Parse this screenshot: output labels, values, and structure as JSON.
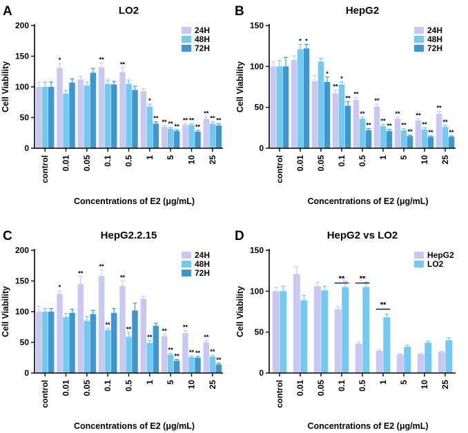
{
  "chart_data": [
    {
      "panel_label": "A",
      "type": "bar",
      "title": "LO2",
      "xlabel": "Concentrations of E2 (μg/mL)",
      "ylabel": "Cell Viability",
      "ylim": [
        0,
        200
      ],
      "yticks": [
        0,
        50,
        100,
        150,
        200
      ],
      "categories": [
        "control",
        "0.01",
        "0.05",
        "0.1",
        "0.5",
        "1",
        "5",
        "10",
        "25"
      ],
      "legend_position": "top-right",
      "series": [
        {
          "name": "24H",
          "color": "#c9c8f2",
          "values": [
            100,
            131,
            112,
            132,
            124,
            93,
            35,
            38,
            48
          ],
          "errors": [
            8,
            7,
            5,
            7,
            7,
            4,
            2,
            2,
            3
          ],
          "labels": [
            "",
            "*",
            "",
            "**",
            "**",
            "",
            "**",
            "**",
            "**"
          ]
        },
        {
          "name": "48H",
          "color": "#74c9f3",
          "values": [
            100,
            89,
            102,
            105,
            105,
            68,
            32,
            38,
            40
          ],
          "errors": [
            8,
            5,
            6,
            6,
            6,
            4,
            2,
            2,
            3
          ],
          "labels": [
            "",
            "",
            "",
            "",
            "",
            "*",
            "**",
            "**",
            "**"
          ]
        },
        {
          "name": "72H",
          "color": "#3f97d1",
          "values": [
            100,
            107,
            123,
            104,
            95,
            40,
            28,
            27,
            37
          ],
          "errors": [
            8,
            6,
            7,
            5,
            6,
            3,
            2,
            2,
            3
          ],
          "labels": [
            "",
            "",
            "",
            "",
            "",
            "**",
            "**",
            "**",
            "**"
          ]
        }
      ]
    },
    {
      "panel_label": "B",
      "type": "bar",
      "title": "HepG2",
      "xlabel": "Concentrations of E2 (μg/mL)",
      "ylabel": "Cell Viability",
      "ylim": [
        0,
        150
      ],
      "yticks": [
        0,
        50,
        100,
        150
      ],
      "categories": [
        "control",
        "0.01",
        "0.05",
        "0.1",
        "0.5",
        "1",
        "5",
        "10",
        "25"
      ],
      "legend_position": "top-right",
      "series": [
        {
          "name": "24H",
          "color": "#c9c8f2",
          "values": [
            100,
            108,
            82,
            67,
            59,
            51,
            36,
            34,
            42
          ],
          "errors": [
            6,
            5,
            7,
            4,
            3,
            3,
            2,
            2,
            3
          ],
          "labels": [
            "",
            "",
            "",
            "**",
            "**",
            "**",
            "**",
            "**",
            "**"
          ]
        },
        {
          "name": "48H",
          "color": "#74c9f3",
          "values": [
            100,
            121,
            106,
            78,
            36,
            27,
            22,
            23,
            26
          ],
          "errors": [
            7,
            6,
            4,
            3,
            2,
            2,
            2,
            2,
            2
          ],
          "labels": [
            "",
            "*",
            "",
            "*",
            "**",
            "**",
            "**",
            "**",
            "**"
          ]
        },
        {
          "name": "72H",
          "color": "#3f97d1",
          "values": [
            100,
            122,
            81,
            52,
            22,
            21,
            15,
            14,
            14
          ],
          "errors": [
            11,
            5,
            6,
            5,
            2,
            2,
            1,
            1,
            1
          ],
          "labels": [
            "",
            "*",
            "*",
            "**",
            "**",
            "**",
            "**",
            "**",
            "**"
          ]
        }
      ]
    },
    {
      "panel_label": "C",
      "type": "bar",
      "title": "HepG2.2.15",
      "xlabel": "Concentrations of E2 (μg/mL)",
      "ylabel": "Cell Viability",
      "ylim": [
        0,
        200
      ],
      "yticks": [
        0,
        50,
        100,
        150,
        200
      ],
      "categories": [
        "control",
        "0.01",
        "0.05",
        "0.1",
        "0.5",
        "1",
        "5",
        "10",
        "25"
      ],
      "legend_position": "top-right",
      "series": [
        {
          "name": "24H",
          "color": "#c9c8f2",
          "values": [
            100,
            129,
            145,
            158,
            142,
            121,
            60,
            65,
            50
          ],
          "errors": [
            9,
            5,
            12,
            10,
            8,
            4,
            3,
            4,
            3
          ],
          "labels": [
            "",
            "*",
            "**",
            "**",
            "**",
            "",
            "**",
            "**",
            "**"
          ]
        },
        {
          "name": "48H",
          "color": "#74c9f3",
          "values": [
            100,
            91,
            85,
            70,
            59,
            49,
            30,
            26,
            27
          ],
          "errors": [
            5,
            6,
            7,
            3,
            7,
            4,
            2,
            2,
            2
          ],
          "labels": [
            "",
            "",
            "",
            "**",
            "**",
            "**",
            "**",
            "**",
            "**"
          ]
        },
        {
          "name": "72H",
          "color": "#3f97d1",
          "values": [
            100,
            98,
            96,
            98,
            102,
            77,
            20,
            25,
            14
          ],
          "errors": [
            5,
            6,
            6,
            7,
            12,
            4,
            2,
            2,
            2
          ],
          "labels": [
            "",
            "",
            "",
            "",
            "",
            "",
            "**",
            "**",
            "**"
          ]
        }
      ]
    },
    {
      "panel_label": "D",
      "type": "bar",
      "title": "HepG2 vs LO2",
      "xlabel": "Concentrations of E2 (μg/mL)",
      "ylabel": "Cell Viability",
      "ylim": [
        0,
        150
      ],
      "yticks": [
        0,
        50,
        100,
        150
      ],
      "categories": [
        "control",
        "0.01",
        "0.05",
        "0.1",
        "0.5",
        "1",
        "5",
        "10",
        "25"
      ],
      "legend_position": "top-right",
      "series": [
        {
          "name": "HepG2",
          "color": "#c9c8f2",
          "values": [
            100,
            121,
            106,
            78,
            36,
            27,
            23,
            23,
            26
          ],
          "errors": [
            5,
            9,
            5,
            3,
            2,
            1,
            1,
            1,
            1
          ],
          "labels": [
            "",
            "",
            "",
            "",
            "",
            "",
            "",
            "",
            ""
          ]
        },
        {
          "name": "LO2",
          "color": "#74c9f3",
          "values": [
            100,
            89,
            101,
            105,
            105,
            68,
            32,
            37,
            40
          ],
          "errors": [
            6,
            6,
            5,
            7,
            6,
            4,
            2,
            2,
            3
          ],
          "labels": [
            "",
            "",
            "",
            "",
            "",
            "",
            "",
            "",
            ""
          ]
        }
      ],
      "significance": [
        {
          "category": "0.1",
          "label": "**",
          "value": 110
        },
        {
          "category": "0.5",
          "label": "**",
          "value": 110
        },
        {
          "category": "1",
          "label": "**",
          "value": 78
        }
      ]
    }
  ]
}
